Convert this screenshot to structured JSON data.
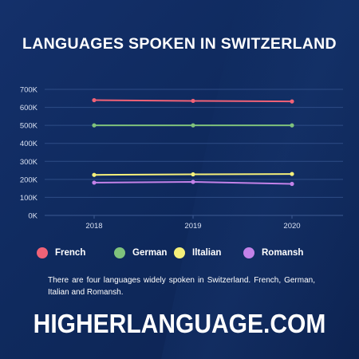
{
  "title": "LANGUAGES SPOKEN IN SWITZERLAND",
  "chart_data": {
    "type": "line",
    "categories": [
      "2018",
      "2019",
      "2020"
    ],
    "y_ticks": [
      "0K",
      "100K",
      "200K",
      "300K",
      "400K",
      "500K",
      "600K",
      "700K"
    ],
    "ylim": [
      0,
      700000
    ],
    "grid": true,
    "legend_position": "bottom",
    "series": [
      {
        "name": "French",
        "color": "#f06277",
        "values": [
          640000,
          636000,
          633000
        ]
      },
      {
        "name": "German",
        "color": "#7fc27c",
        "values": [
          500000,
          500000,
          500000
        ]
      },
      {
        "name": "Iltalian",
        "color": "#f5f07a",
        "values": [
          225000,
          228000,
          230000
        ]
      },
      {
        "name": "Romansh",
        "color": "#c382e8",
        "values": [
          182000,
          186000,
          175000
        ]
      }
    ]
  },
  "description": "There are four languages widely spoken in Switzerland. French, German, Italian and Romansh.",
  "footer": "HIGHERLANGUAGE.COM"
}
